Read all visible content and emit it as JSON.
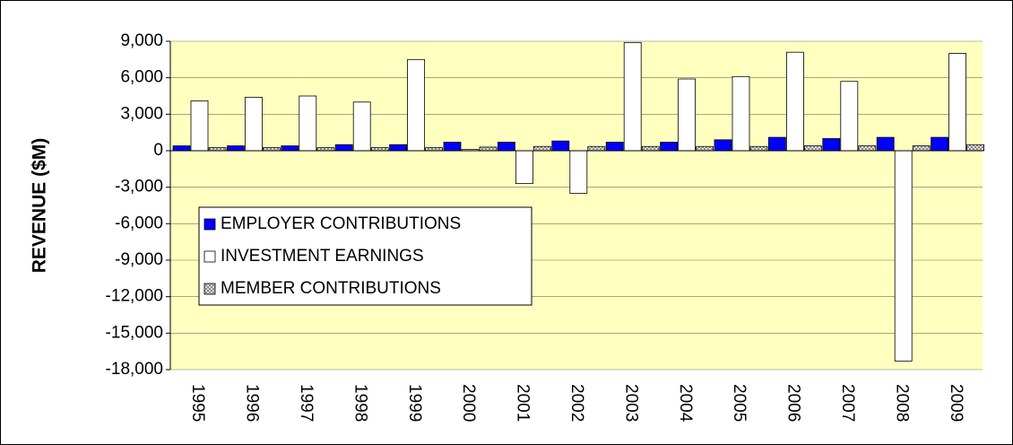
{
  "chart_data": {
    "type": "bar",
    "y_label": "REVENUE ($M)",
    "categories": [
      "1995",
      "1996",
      "1997",
      "1998",
      "1999",
      "2000",
      "2001",
      "2002",
      "2003",
      "2004",
      "2005",
      "2006",
      "2007",
      "2008",
      "2009"
    ],
    "series": [
      {
        "name": "EMPLOYER CONTRIBUTIONS",
        "color": "#0000ff",
        "values": [
          400,
          400,
          400,
          500,
          500,
          700,
          700,
          800,
          700,
          700,
          900,
          1100,
          1000,
          1100,
          1100
        ]
      },
      {
        "name": "INVESTMENT EARNINGS",
        "color": "#ffffff",
        "values": [
          4100,
          4400,
          4500,
          4000,
          7500,
          100,
          -2700,
          -3500,
          8900,
          5900,
          6100,
          8100,
          5700,
          -17300,
          8000
        ]
      },
      {
        "name": "MEMBER CONTRIBUTIONS",
        "color": "#808080",
        "hatched": true,
        "values": [
          250,
          250,
          250,
          250,
          250,
          300,
          350,
          350,
          350,
          350,
          350,
          400,
          400,
          400,
          500
        ]
      }
    ],
    "ylim": [
      -18000,
      9000
    ],
    "yticks": [
      {
        "value": -18000,
        "label": "-18,000"
      },
      {
        "value": -15000,
        "label": "-15,000"
      },
      {
        "value": -12000,
        "label": "-12,000"
      },
      {
        "value": -9000,
        "label": "-9,000"
      },
      {
        "value": -6000,
        "label": "-6,000"
      },
      {
        "value": -3000,
        "label": "-3,000"
      },
      0,
      {
        "value": 3000,
        "label": "3,000"
      },
      {
        "value": 6000,
        "label": "6,000"
      },
      {
        "value": 9000,
        "label": "9,000"
      }
    ],
    "grid": true,
    "plot_background": "#ffffc0",
    "legend": "center-left"
  }
}
